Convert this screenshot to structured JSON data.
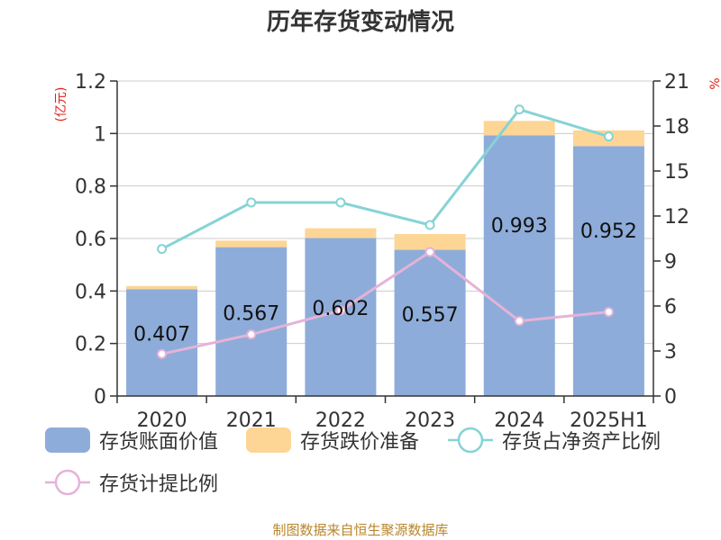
{
  "title": "历年存货变动情况",
  "source": "制图数据来自恒生聚源数据库",
  "colors": {
    "book": "#8eacd9",
    "reserve": "#fdd595",
    "ratio_line": "#86d3d6",
    "provision_line": "#e5b3d8",
    "unit": "#e0201a",
    "source": "#b8862b"
  },
  "chart_data": {
    "type": "bar",
    "title": "历年存货变动情况",
    "categories": [
      "2020",
      "2021",
      "2022",
      "2023",
      "2024",
      "2025H1"
    ],
    "y_left": {
      "unit": "(亿元)",
      "ylim": [
        0,
        1.2
      ],
      "ticks": [
        "0",
        "0.2",
        "0.4",
        "0.6",
        "0.8",
        "1",
        "1.2"
      ]
    },
    "y_right": {
      "unit": "%",
      "ylim": [
        0,
        21
      ],
      "ticks": [
        "0",
        "3",
        "6",
        "9",
        "12",
        "15",
        "18",
        "21"
      ]
    },
    "series": [
      {
        "name": "存货账面价值",
        "kind": "bar",
        "axis": "left",
        "values": [
          0.407,
          0.567,
          0.602,
          0.557,
          0.993,
          0.952
        ],
        "labels": [
          "0.407",
          "0.567",
          "0.602",
          "0.557",
          "0.993",
          "0.952"
        ]
      },
      {
        "name": "存货跌价准备",
        "kind": "bar",
        "axis": "left",
        "values": [
          0.012,
          0.025,
          0.037,
          0.06,
          0.055,
          0.06
        ]
      },
      {
        "name": "存货占净资产比例",
        "kind": "line",
        "axis": "right",
        "values": [
          9.8,
          12.9,
          12.9,
          11.4,
          19.1,
          17.3
        ]
      },
      {
        "name": "存货计提比例",
        "kind": "line",
        "axis": "right",
        "values": [
          2.8,
          4.1,
          5.7,
          9.6,
          5.0,
          5.6
        ]
      }
    ],
    "grid": true
  }
}
